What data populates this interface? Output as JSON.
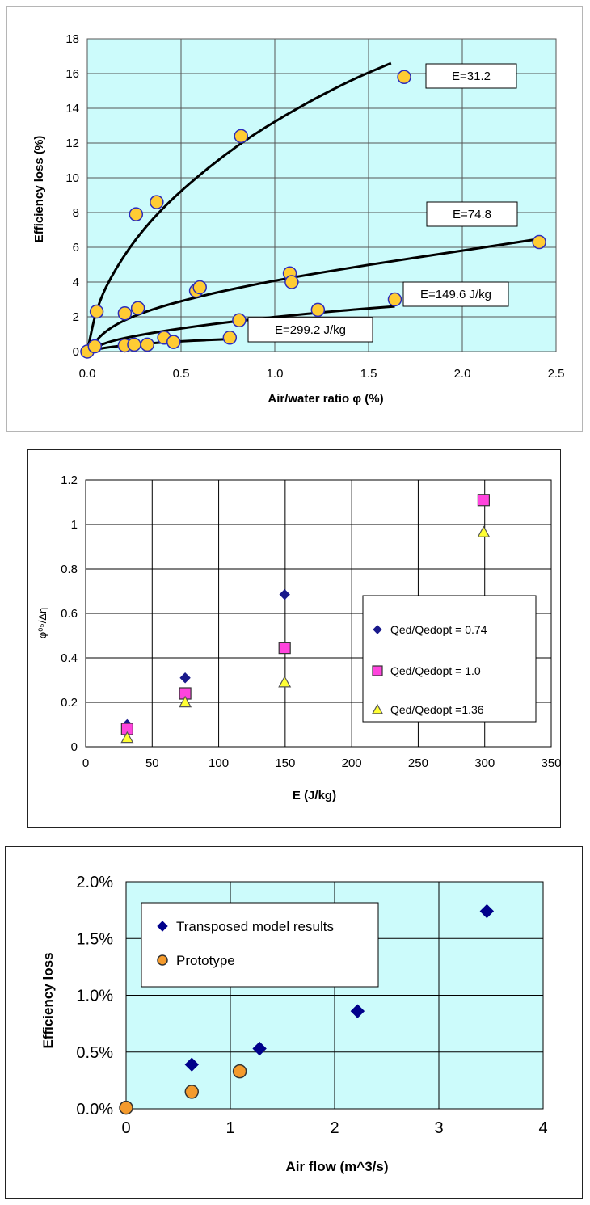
{
  "chart_data": [
    {
      "type": "scatter",
      "title": "",
      "xlabel": "Air/water ratio φ (%)",
      "ylabel": "Efficiency loss (%)",
      "xlim": [
        0,
        2.5
      ],
      "ylim": [
        0,
        18
      ],
      "x_ticks": [
        "0.0",
        "0.5",
        "1.0",
        "1.5",
        "2.0",
        "2.5"
      ],
      "y_ticks": [
        "0",
        "2",
        "4",
        "6",
        "8",
        "10",
        "12",
        "14",
        "16",
        "18"
      ],
      "grid": true,
      "plot_background": "#ccfbfb",
      "marker_fill": "#ffcc33",
      "marker_edge": "#2b2bbb",
      "points": [
        {
          "x": 0.0,
          "y": 0.0
        },
        {
          "x": 0.05,
          "y": 2.3
        },
        {
          "x": 0.04,
          "y": 0.3
        },
        {
          "x": 0.2,
          "y": 2.2
        },
        {
          "x": 0.27,
          "y": 2.5
        },
        {
          "x": 0.26,
          "y": 7.9
        },
        {
          "x": 0.37,
          "y": 8.6
        },
        {
          "x": 0.82,
          "y": 12.4
        },
        {
          "x": 1.69,
          "y": 15.8
        },
        {
          "x": 0.58,
          "y": 3.5
        },
        {
          "x": 0.6,
          "y": 3.7
        },
        {
          "x": 1.08,
          "y": 4.5
        },
        {
          "x": 1.09,
          "y": 4.0
        },
        {
          "x": 2.41,
          "y": 6.3
        },
        {
          "x": 0.81,
          "y": 1.8
        },
        {
          "x": 1.23,
          "y": 2.4
        },
        {
          "x": 1.64,
          "y": 3.0
        },
        {
          "x": 0.2,
          "y": 0.35
        },
        {
          "x": 0.25,
          "y": 0.4
        },
        {
          "x": 0.32,
          "y": 0.4
        },
        {
          "x": 0.41,
          "y": 0.8
        },
        {
          "x": 0.46,
          "y": 0.55
        },
        {
          "x": 0.76,
          "y": 0.8
        }
      ],
      "fit_curves": [
        {
          "label": "E=31.2",
          "points": [
            [
              0,
              0
            ],
            [
              0.05,
              2.6
            ],
            [
              0.15,
              4.8
            ],
            [
              0.3,
              7.1
            ],
            [
              0.5,
              9.3
            ],
            [
              0.8,
              11.9
            ],
            [
              1.1,
              13.9
            ],
            [
              1.4,
              15.6
            ],
            [
              1.62,
              16.6
            ]
          ]
        },
        {
          "label": "E=74.8",
          "points": [
            [
              0,
              0
            ],
            [
              0.1,
              1.3
            ],
            [
              0.3,
              2.3
            ],
            [
              0.6,
              3.2
            ],
            [
              1.0,
              4.1
            ],
            [
              1.5,
              5.0
            ],
            [
              2.0,
              5.8
            ],
            [
              2.42,
              6.5
            ]
          ]
        },
        {
          "label": "E=149.6 J/kg",
          "points": [
            [
              0,
              0
            ],
            [
              0.1,
              0.55
            ],
            [
              0.3,
              1.0
            ],
            [
              0.6,
              1.5
            ],
            [
              1.0,
              2.0
            ],
            [
              1.4,
              2.4
            ],
            [
              1.64,
              2.6
            ]
          ]
        },
        {
          "label": "E=299.2 J/kg",
          "points": [
            [
              0,
              0
            ],
            [
              0.1,
              0.25
            ],
            [
              0.3,
              0.45
            ],
            [
              0.5,
              0.6
            ],
            [
              0.77,
              0.72
            ]
          ]
        }
      ],
      "annotations": [
        "E=31.2",
        "E=74.8",
        "E=149.6 J/kg",
        "E=299.2 J/kg"
      ]
    },
    {
      "type": "scatter",
      "title": "",
      "xlabel": "E (J/kg)",
      "ylabel": "φ⁰⁵/Δη",
      "xlim": [
        0,
        350
      ],
      "ylim": [
        0,
        1.2
      ],
      "x_ticks": [
        "0",
        "50",
        "100",
        "150",
        "200",
        "250",
        "300",
        "350"
      ],
      "y_ticks": [
        "0",
        "0.2",
        "0.4",
        "0.6",
        "0.8",
        "1",
        "1.2"
      ],
      "grid": true,
      "legend_position": "right",
      "series": [
        {
          "name": "Qed/Qedopt = 0.74",
          "marker": "diamond",
          "color": "#1a1a8c",
          "x": [
            31.2,
            74.8,
            149.6
          ],
          "y": [
            0.1,
            0.31,
            0.685
          ]
        },
        {
          "name": "Qed/Qedopt = 1.0",
          "marker": "square",
          "color": "#ff44dd",
          "x": [
            31.2,
            74.8,
            149.6,
            299.2
          ],
          "y": [
            0.08,
            0.24,
            0.445,
            1.11
          ]
        },
        {
          "name": "Qed/Qedopt =1.36",
          "marker": "triangle",
          "color": "#ffff33",
          "x": [
            31.2,
            74.8,
            149.6,
            299.2
          ],
          "y": [
            0.04,
            0.2,
            0.29,
            0.965
          ]
        }
      ]
    },
    {
      "type": "scatter",
      "title": "",
      "xlabel": "Air flow (m^3/s)",
      "ylabel": "Efficiency loss",
      "xlim": [
        0,
        4
      ],
      "ylim": [
        0,
        2.0
      ],
      "x_ticks": [
        "0",
        "1",
        "2",
        "3",
        "4"
      ],
      "y_ticks": [
        "0.0%",
        "0.5%",
        "1.0%",
        "1.5%",
        "2.0%"
      ],
      "grid": true,
      "plot_background": "#ccfbfb",
      "legend_position": "top-left",
      "series": [
        {
          "name": "Transposed model results",
          "marker": "diamond",
          "color": "#00008b",
          "x": [
            0.63,
            1.28,
            2.22,
            3.46
          ],
          "y": [
            0.39,
            0.53,
            0.86,
            1.74
          ]
        },
        {
          "name": "Prototype",
          "marker": "circle",
          "color": "#f49a2c",
          "x": [
            0.0,
            0.63,
            1.09
          ],
          "y": [
            0.01,
            0.15,
            0.33
          ]
        }
      ]
    }
  ]
}
